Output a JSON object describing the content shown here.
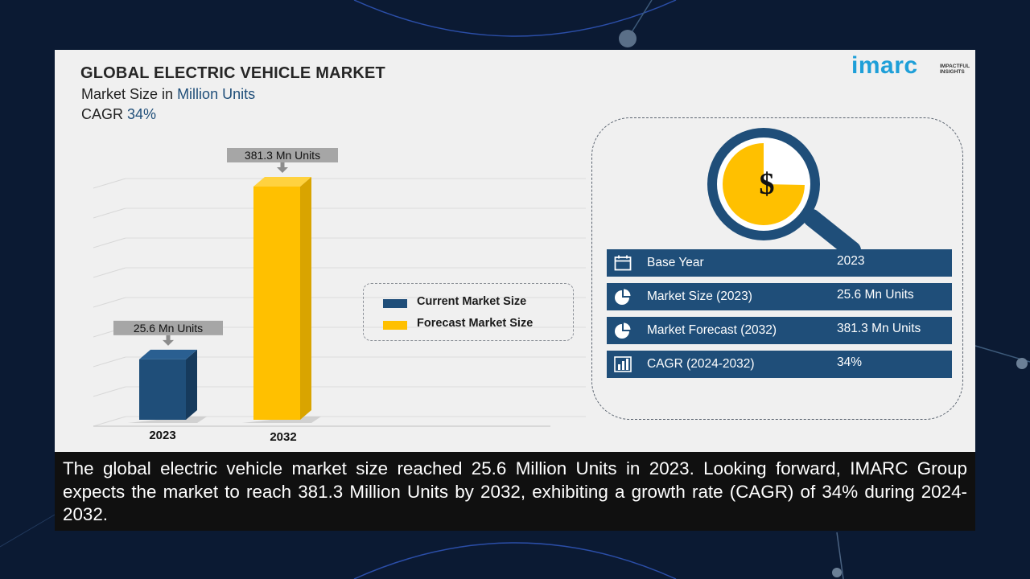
{
  "header": {
    "title": "GLOBAL ELECTRIC VEHICLE MARKET",
    "size_prefix": "Market Size in",
    "size_unit": "Million Units",
    "cagr_prefix": "CAGR",
    "cagr_value": "34%"
  },
  "logo": {
    "word": "imarc",
    "tagline": "IMPACTFUL INSIGHTS"
  },
  "chart_data": {
    "type": "bar",
    "categories": [
      "2023",
      "2032"
    ],
    "values": [
      25.6,
      381.3
    ],
    "data_labels": [
      "25.6 Mn Units",
      "381.3 Mn Units"
    ],
    "colors": [
      "#1f4e79",
      "#ffc000"
    ],
    "legend": [
      "Current Market Size",
      "Forecast Market Size"
    ],
    "legend_position": "right",
    "grid": true,
    "xlabel": "",
    "ylabel": ""
  },
  "info_rows": [
    {
      "icon": "calendar-icon",
      "label": "Base Year",
      "value": "2023"
    },
    {
      "icon": "pie-chart-icon",
      "label": "Market Size (2023)",
      "value": "25.6 Mn Units"
    },
    {
      "icon": "pie-chart-icon",
      "label": "Market Forecast (2032)",
      "value": "381.3 Mn Units"
    },
    {
      "icon": "bar-chart-icon",
      "label": "CAGR (2024-2032)",
      "value": "34%"
    }
  ],
  "caption": "The global electric vehicle market size reached 25.6 Million Units in 2023. Looking forward, IMARC Group expects the market to reach 381.3 Million Units by 2032, exhibiting a growth rate (CAGR) of 34% during 2024-2032.",
  "colors": {
    "navy": "#1f4e79",
    "gold": "#ffc000",
    "panel_bg": "#f0f0f0",
    "logo_blue": "#1e9fd8"
  }
}
